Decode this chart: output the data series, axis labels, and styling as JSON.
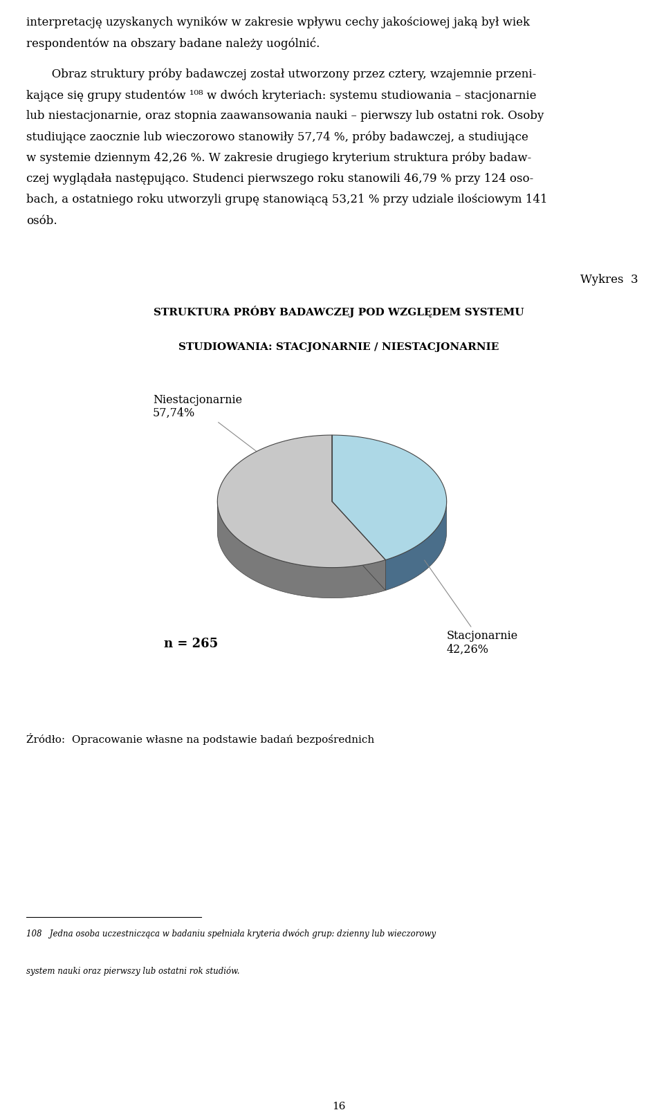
{
  "title_label": "Wykres  3",
  "title_line1": "STRUKTURA PRÓBY BADAWCZEJ POD WZGLĘDEM SYSTEMU",
  "title_line2": "STUDIOWANIA: STACJONARNIE / NIESTACJONARNIE",
  "slices": [
    57.74,
    42.26
  ],
  "colors_top": [
    "#c8c8c8",
    "#add8e6"
  ],
  "colors_side": [
    "#7a7a7a",
    "#4a6e8a"
  ],
  "n_label": "n = 265",
  "source": "Źródło:  Opracowanie własne na podstawie badań bezpośrednich",
  "footnote_sup": "108",
  "footnote_line1": "   Jedna osoba uczestnicząca w badaniu spełniała kryteria dwóch grup: dzienny lub wieczorowy",
  "footnote_line2": "system nauki oraz pierwszy lub ostatni rok studiów.",
  "background_color": "#ffffff",
  "page_number": "16",
  "text_para1_line1": "interpretację uzyskanych wyników w zakresie wpływu cechy jakościowej jaką był wiek",
  "text_para1_line2": "respondentów na obszary badane należy uogólnić.",
  "text_para2": "       Obraz struktury próby badawczej został utworzony przez cztery, wzajemnie przeni-\nkające się grupy studentów ¹⁰⁸ w dwóch kryteriach: systemu studiowania – stacjonarnie\nlub niestacjonarnie, oraz stopnia zaawansowania nauki – pierwszy lub ostatni rok. Osoby\nstudiojące zaocznie lub wieczorowo stanowiły 57,74 %, próby badawczej, a studiujące\nw systemie dziennym 42,26 %. W zakresie drugiego kryterium struktura próby badaw-\nczej wyglądała następująco. Studenci pierwszego roku stanowili 46,79 % przy 124 oso-\nbach, a ostatniego roku utworzyli grupę stanowiącą 53,21 % przy udziale ilościowym 141\nosób."
}
